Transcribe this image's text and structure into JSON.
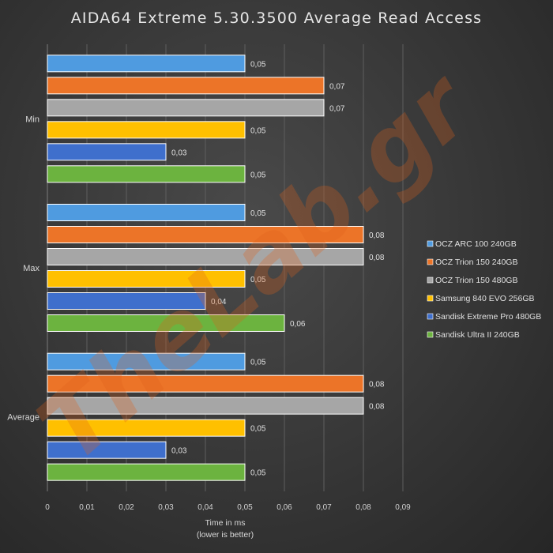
{
  "chart_data": {
    "type": "bar",
    "orientation": "horizontal",
    "title": "AIDA64  Extreme  5.30.3500  Average  Read  Access",
    "categories": [
      "Min",
      "Max",
      "Average"
    ],
    "series": [
      {
        "name": "OCZ ARC 100 240GB",
        "color": "#4f9be0",
        "values": [
          0.05,
          0.05,
          0.05
        ],
        "labels": [
          "0,05",
          "0,05",
          "0,05"
        ]
      },
      {
        "name": "OCZ Trion 150 240GB",
        "color": "#ec7428",
        "values": [
          0.07,
          0.08,
          0.08
        ],
        "labels": [
          "0,07",
          "0,08",
          "0,08"
        ]
      },
      {
        "name": "OCZ Trion 150 480GB",
        "color": "#a6a6a6",
        "values": [
          0.07,
          0.08,
          0.08
        ],
        "labels": [
          "0,07",
          "0,08",
          "0,08"
        ]
      },
      {
        "name": "Samsung 840 EVO 256GB",
        "color": "#ffc000",
        "values": [
          0.05,
          0.05,
          0.05
        ],
        "labels": [
          "0,05",
          "0,05",
          "0,05"
        ]
      },
      {
        "name": "Sandisk Extreme Pro 480GB",
        "color": "#3f6fcc",
        "values": [
          0.03,
          0.04,
          0.03
        ],
        "labels": [
          "0,03",
          "0,04",
          "0,03"
        ]
      },
      {
        "name": "Sandisk Ultra II 240GB",
        "color": "#6cb33f",
        "values": [
          0.05,
          0.06,
          0.05
        ],
        "labels": [
          "0,05",
          "0,06",
          "0,05"
        ]
      }
    ],
    "xlim": [
      0,
      0.09
    ],
    "xticks": [
      0,
      0.01,
      0.02,
      0.03,
      0.04,
      0.05,
      0.06,
      0.07,
      0.08,
      0.09
    ],
    "xtick_labels": [
      "0",
      "0,01",
      "0,02",
      "0,03",
      "0,04",
      "0,05",
      "0,06",
      "0,07",
      "0,08",
      "0,09"
    ],
    "xlabel": "Time in ms",
    "xlabel_note": "(lower is better)",
    "ylabel": "",
    "grid": true,
    "legend_position": "right"
  },
  "watermark": "TheLab.gr"
}
